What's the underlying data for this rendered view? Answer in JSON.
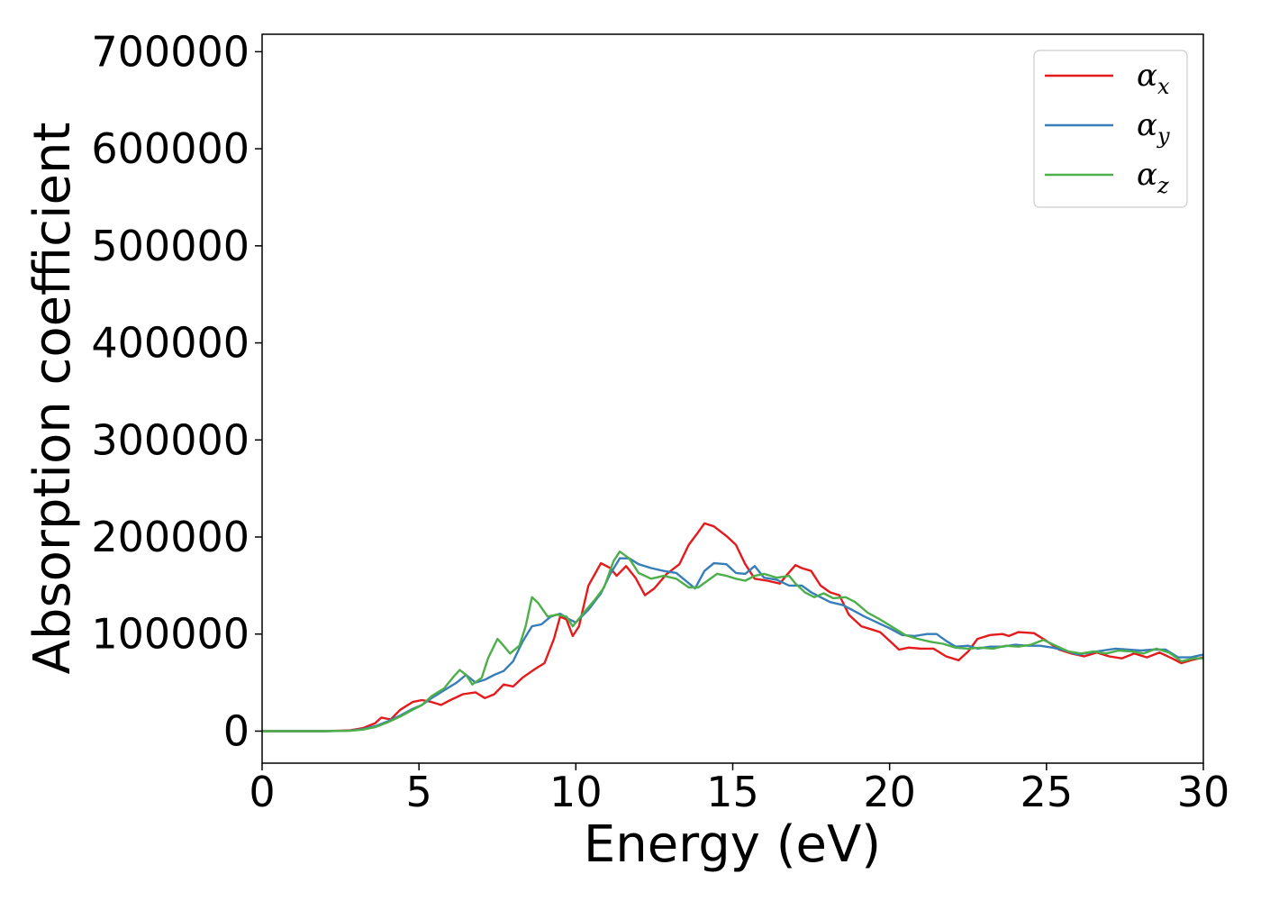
{
  "chart_data": {
    "type": "line",
    "xlabel": "Energy (eV)",
    "ylabel": "Absorption coefficient",
    "xlim": [
      0,
      30
    ],
    "ylim": [
      -33000,
      718000
    ],
    "xticks": [
      "0",
      "5",
      "10",
      "15",
      "20",
      "25",
      "30"
    ],
    "yticks": [
      "0",
      "100000",
      "200000",
      "300000",
      "400000",
      "500000",
      "600000",
      "700000"
    ],
    "grid": false,
    "legend_position": "top-right",
    "series": [
      {
        "name": "α",
        "sub": "x",
        "color": "#e41a1c",
        "points": [
          [
            0,
            0
          ],
          [
            1,
            0
          ],
          [
            2,
            0
          ],
          [
            2.8,
            800
          ],
          [
            3.2,
            3000
          ],
          [
            3.6,
            8000
          ],
          [
            3.8,
            14000
          ],
          [
            4.1,
            12000
          ],
          [
            4.4,
            22000
          ],
          [
            4.8,
            30000
          ],
          [
            5.1,
            32000
          ],
          [
            5.4,
            30000
          ],
          [
            5.7,
            27000
          ],
          [
            6.0,
            32000
          ],
          [
            6.4,
            38000
          ],
          [
            6.8,
            40000
          ],
          [
            7.1,
            34000
          ],
          [
            7.4,
            38000
          ],
          [
            7.7,
            48000
          ],
          [
            8.0,
            46000
          ],
          [
            8.3,
            55000
          ],
          [
            8.7,
            64000
          ],
          [
            9.0,
            70000
          ],
          [
            9.3,
            95000
          ],
          [
            9.5,
            118000
          ],
          [
            9.7,
            115000
          ],
          [
            9.9,
            98000
          ],
          [
            10.1,
            108000
          ],
          [
            10.4,
            150000
          ],
          [
            10.8,
            173000
          ],
          [
            11.1,
            168000
          ],
          [
            11.3,
            160000
          ],
          [
            11.6,
            170000
          ],
          [
            11.9,
            158000
          ],
          [
            12.2,
            140000
          ],
          [
            12.5,
            147000
          ],
          [
            12.9,
            162000
          ],
          [
            13.3,
            172000
          ],
          [
            13.6,
            192000
          ],
          [
            13.9,
            205000
          ],
          [
            14.1,
            214000
          ],
          [
            14.4,
            211000
          ],
          [
            14.8,
            201000
          ],
          [
            15.1,
            192000
          ],
          [
            15.4,
            172000
          ],
          [
            15.7,
            157000
          ],
          [
            16.1,
            155000
          ],
          [
            16.5,
            152000
          ],
          [
            16.7,
            160000
          ],
          [
            17.0,
            171000
          ],
          [
            17.2,
            168000
          ],
          [
            17.5,
            165000
          ],
          [
            17.8,
            150000
          ],
          [
            18.1,
            143000
          ],
          [
            18.4,
            140000
          ],
          [
            18.7,
            120000
          ],
          [
            19.1,
            108000
          ],
          [
            19.4,
            105000
          ],
          [
            19.7,
            102000
          ],
          [
            20.0,
            93000
          ],
          [
            20.3,
            84000
          ],
          [
            20.6,
            86000
          ],
          [
            21.0,
            85000
          ],
          [
            21.4,
            85000
          ],
          [
            21.8,
            77000
          ],
          [
            22.2,
            73000
          ],
          [
            22.5,
            82000
          ],
          [
            22.8,
            95000
          ],
          [
            23.2,
            99000
          ],
          [
            23.6,
            100000
          ],
          [
            23.8,
            98000
          ],
          [
            24.1,
            102000
          ],
          [
            24.6,
            101000
          ],
          [
            25.0,
            93000
          ],
          [
            25.4,
            84000
          ],
          [
            25.8,
            80000
          ],
          [
            26.2,
            77000
          ],
          [
            26.6,
            81000
          ],
          [
            27.0,
            77000
          ],
          [
            27.4,
            75000
          ],
          [
            27.8,
            80000
          ],
          [
            28.2,
            76000
          ],
          [
            28.6,
            81000
          ],
          [
            29.0,
            75000
          ],
          [
            29.3,
            70000
          ],
          [
            29.6,
            73000
          ],
          [
            30,
            76000
          ]
        ]
      },
      {
        "name": "α",
        "sub": "y",
        "color": "#377eb8",
        "points": [
          [
            0,
            0
          ],
          [
            1,
            0
          ],
          [
            2,
            0
          ],
          [
            2.8,
            500
          ],
          [
            3.2,
            2000
          ],
          [
            3.6,
            5000
          ],
          [
            4.0,
            10000
          ],
          [
            4.4,
            16000
          ],
          [
            4.8,
            23000
          ],
          [
            5.1,
            27000
          ],
          [
            5.4,
            34000
          ],
          [
            5.8,
            42000
          ],
          [
            6.2,
            50000
          ],
          [
            6.5,
            58000
          ],
          [
            6.8,
            50000
          ],
          [
            7.1,
            53000
          ],
          [
            7.4,
            58000
          ],
          [
            7.7,
            62000
          ],
          [
            8.0,
            72000
          ],
          [
            8.3,
            92000
          ],
          [
            8.6,
            108000
          ],
          [
            8.9,
            110000
          ],
          [
            9.2,
            118000
          ],
          [
            9.5,
            121000
          ],
          [
            9.8,
            115000
          ],
          [
            10.0,
            112000
          ],
          [
            10.4,
            125000
          ],
          [
            10.8,
            142000
          ],
          [
            11.1,
            162000
          ],
          [
            11.4,
            178000
          ],
          [
            11.7,
            178000
          ],
          [
            12.0,
            172000
          ],
          [
            12.4,
            168000
          ],
          [
            12.8,
            165000
          ],
          [
            13.2,
            163000
          ],
          [
            13.5,
            155000
          ],
          [
            13.8,
            147000
          ],
          [
            14.1,
            165000
          ],
          [
            14.4,
            173000
          ],
          [
            14.8,
            172000
          ],
          [
            15.1,
            163000
          ],
          [
            15.4,
            162000
          ],
          [
            15.7,
            170000
          ],
          [
            16.0,
            158000
          ],
          [
            16.4,
            156000
          ],
          [
            16.8,
            150000
          ],
          [
            17.2,
            150000
          ],
          [
            17.5,
            143000
          ],
          [
            17.8,
            138000
          ],
          [
            18.1,
            133000
          ],
          [
            18.5,
            130000
          ],
          [
            18.8,
            125000
          ],
          [
            19.2,
            118000
          ],
          [
            19.6,
            112000
          ],
          [
            20.0,
            106000
          ],
          [
            20.4,
            99000
          ],
          [
            20.8,
            98000
          ],
          [
            21.2,
            100000
          ],
          [
            21.5,
            100000
          ],
          [
            21.8,
            93000
          ],
          [
            22.1,
            87000
          ],
          [
            22.5,
            88000
          ],
          [
            22.8,
            85000
          ],
          [
            23.2,
            87000
          ],
          [
            23.6,
            87000
          ],
          [
            24.0,
            89000
          ],
          [
            24.4,
            88000
          ],
          [
            24.8,
            88000
          ],
          [
            25.2,
            86000
          ],
          [
            25.6,
            83000
          ],
          [
            26.0,
            79000
          ],
          [
            26.4,
            81000
          ],
          [
            26.8,
            83000
          ],
          [
            27.2,
            85000
          ],
          [
            27.6,
            84000
          ],
          [
            28.0,
            83000
          ],
          [
            28.4,
            84000
          ],
          [
            28.8,
            84000
          ],
          [
            29.2,
            76000
          ],
          [
            29.6,
            76000
          ],
          [
            30,
            79000
          ]
        ]
      },
      {
        "name": "α",
        "sub": "z",
        "color": "#4daf4a",
        "points": [
          [
            0,
            0
          ],
          [
            1,
            0
          ],
          [
            2,
            0
          ],
          [
            2.8,
            300
          ],
          [
            3.2,
            1500
          ],
          [
            3.6,
            4000
          ],
          [
            4.0,
            9000
          ],
          [
            4.4,
            15000
          ],
          [
            4.8,
            22000
          ],
          [
            5.1,
            27000
          ],
          [
            5.4,
            36000
          ],
          [
            5.8,
            44000
          ],
          [
            6.1,
            56000
          ],
          [
            6.3,
            63000
          ],
          [
            6.5,
            58000
          ],
          [
            6.7,
            48000
          ],
          [
            7.0,
            55000
          ],
          [
            7.2,
            75000
          ],
          [
            7.5,
            95000
          ],
          [
            7.7,
            88000
          ],
          [
            7.9,
            80000
          ],
          [
            8.2,
            88000
          ],
          [
            8.4,
            108000
          ],
          [
            8.6,
            138000
          ],
          [
            8.8,
            132000
          ],
          [
            9.1,
            118000
          ],
          [
            9.4,
            120000
          ],
          [
            9.7,
            118000
          ],
          [
            9.9,
            108000
          ],
          [
            10.2,
            120000
          ],
          [
            10.6,
            135000
          ],
          [
            10.9,
            148000
          ],
          [
            11.2,
            175000
          ],
          [
            11.4,
            185000
          ],
          [
            11.7,
            178000
          ],
          [
            12.0,
            163000
          ],
          [
            12.4,
            157000
          ],
          [
            12.8,
            160000
          ],
          [
            13.2,
            157000
          ],
          [
            13.6,
            148000
          ],
          [
            13.9,
            148000
          ],
          [
            14.2,
            155000
          ],
          [
            14.5,
            162000
          ],
          [
            14.8,
            160000
          ],
          [
            15.1,
            157000
          ],
          [
            15.4,
            155000
          ],
          [
            15.7,
            160000
          ],
          [
            16.0,
            162000
          ],
          [
            16.4,
            158000
          ],
          [
            16.8,
            160000
          ],
          [
            17.0,
            152000
          ],
          [
            17.3,
            143000
          ],
          [
            17.6,
            138000
          ],
          [
            17.9,
            142000
          ],
          [
            18.2,
            137000
          ],
          [
            18.6,
            138000
          ],
          [
            18.9,
            133000
          ],
          [
            19.3,
            122000
          ],
          [
            19.7,
            115000
          ],
          [
            20.1,
            107000
          ],
          [
            20.5,
            99000
          ],
          [
            20.9,
            95000
          ],
          [
            21.3,
            92000
          ],
          [
            21.7,
            90000
          ],
          [
            22.1,
            86000
          ],
          [
            22.5,
            85000
          ],
          [
            22.9,
            86000
          ],
          [
            23.3,
            85000
          ],
          [
            23.7,
            88000
          ],
          [
            24.1,
            87000
          ],
          [
            24.5,
            89000
          ],
          [
            24.9,
            94000
          ],
          [
            25.3,
            88000
          ],
          [
            25.7,
            82000
          ],
          [
            26.1,
            80000
          ],
          [
            26.5,
            82000
          ],
          [
            26.9,
            80000
          ],
          [
            27.3,
            83000
          ],
          [
            27.7,
            82000
          ],
          [
            28.1,
            80000
          ],
          [
            28.5,
            85000
          ],
          [
            28.9,
            81000
          ],
          [
            29.3,
            72000
          ],
          [
            29.7,
            75000
          ],
          [
            30,
            75000
          ]
        ]
      }
    ]
  }
}
